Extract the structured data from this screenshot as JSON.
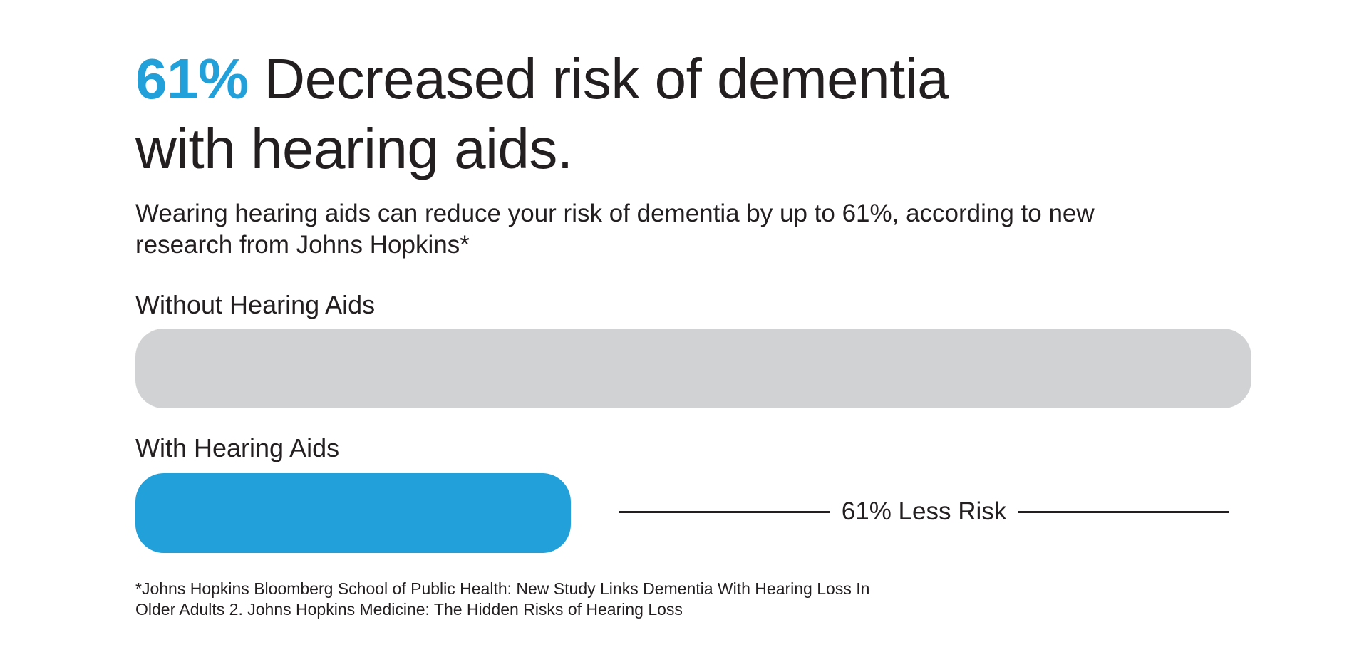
{
  "headline": {
    "highlight": "61%",
    "line1_rest": " Decreased risk of dementia",
    "line2": "with hearing aids."
  },
  "subtitle": "Wearing hearing aids can reduce your risk of dementia by up to 61%, according to new research from Johns Hopkins*",
  "chart_data": {
    "type": "bar",
    "orientation": "horizontal",
    "unit": "relative risk (%)",
    "bars": [
      {
        "label": "Without Hearing Aids",
        "value": 100,
        "color": "#d1d2d4"
      },
      {
        "label": "With Hearing Aids",
        "value": 39,
        "color": "#21a0d9"
      }
    ],
    "annotation": "61% Less Risk",
    "xlim": [
      0,
      100
    ],
    "grid": false,
    "legend": "none"
  },
  "colors": {
    "accent": "#21a0d9",
    "track": "#ffffff",
    "text": "#231f20"
  },
  "footnote": {
    "line1": "*Johns Hopkins Bloomberg School of Public Health: New Study Links Dementia With Hearing Loss In",
    "line2": "Older Adults 2. Johns Hopkins Medicine: The Hidden Risks of Hearing Loss"
  }
}
